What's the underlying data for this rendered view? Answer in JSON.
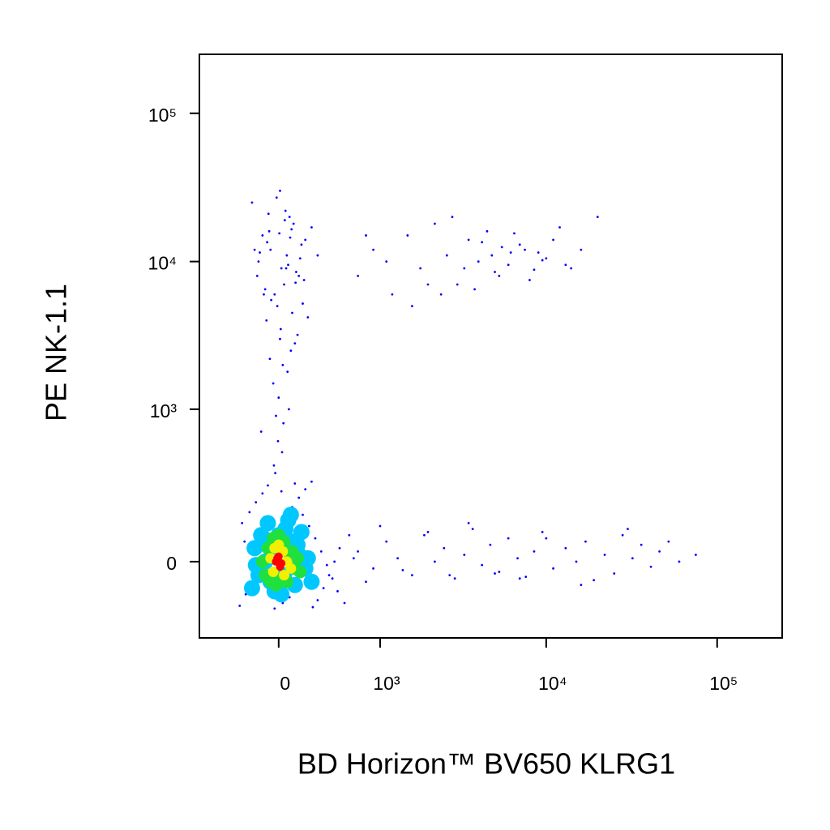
{
  "chart_data": {
    "type": "scatter",
    "xlabel": "BD Horizon™ BV650 KLRG1",
    "ylabel": "PE NK-1.1",
    "xscale": "biexponential",
    "yscale": "biexponential",
    "xlim": [
      -700,
      240000
    ],
    "ylim": [
      -280,
      250000
    ],
    "xticks": [
      0,
      {
        "value": 1000,
        "label": "10³"
      },
      {
        "value": 10000,
        "label": "10⁴"
      },
      {
        "value": 100000,
        "label": "10⁵"
      }
    ],
    "yticks": [
      0,
      {
        "value": 1000,
        "label": "10³"
      },
      {
        "value": 10000,
        "label": "10⁴"
      },
      {
        "value": 100000,
        "label": "10⁵"
      }
    ],
    "series": [
      {
        "color": "#0000ff",
        "x": [
          -120,
          -60,
          20,
          80,
          150,
          -200,
          -30,
          60,
          200,
          -90,
          10,
          110,
          -150,
          40,
          -10,
          90,
          170,
          -70,
          30,
          250,
          -40,
          70,
          -180,
          0,
          130,
          -100,
          50,
          -20,
          100,
          300,
          -130,
          15,
          85,
          -55,
          160,
          -5,
          45,
          120,
          -160,
          65,
          25,
          -85,
          190,
          -35,
          5,
          140,
          -110,
          75,
          -15,
          55,
          220,
          -65,
          35,
          -140,
          95,
          -25,
          180,
          -75,
          125,
          10,
          700,
          900,
          1200,
          1500,
          1800,
          2200,
          2600,
          3000,
          3500,
          4000,
          4500,
          5000,
          5500,
          6000,
          7000,
          8000,
          9000,
          10000,
          12000,
          14000,
          800,
          1100,
          1600,
          2000,
          2800,
          3300,
          3800,
          4200,
          4800,
          5300,
          6500,
          7500,
          8500,
          9500,
          11000,
          13000,
          16000,
          20000,
          2400,
          6200,
          700,
          900,
          1100,
          1300,
          1600,
          1900,
          2200,
          2500,
          2900,
          3300,
          3700,
          4200,
          4700,
          5300,
          6000,
          6800,
          7600,
          8500,
          9500,
          11000,
          13000,
          15000,
          17000,
          19000,
          22000,
          25000,
          28000,
          32000,
          36000,
          41000,
          46000,
          52000,
          60000,
          75000,
          800,
          1000,
          1400,
          2000,
          2700,
          3500,
          5000,
          7000,
          10000,
          16000,
          30000,
          -300,
          -250,
          -200,
          -150,
          -100,
          -50,
          0,
          50,
          100,
          150,
          200,
          250,
          300,
          350,
          400,
          450,
          500,
          600,
          -280,
          -220,
          -170,
          -120,
          -80,
          -30,
          30,
          80,
          130,
          180,
          230,
          280,
          330,
          380,
          430,
          480,
          550,
          650,
          -260,
          20,
          120,
          260
        ],
        "y": [
          15000,
          12000,
          9000,
          20000,
          8000,
          25000,
          6000,
          11000,
          14000,
          4000,
          3000,
          18000,
          10000,
          7000,
          5000,
          2500,
          13000,
          16000,
          2000,
          17000,
          1500,
          9500,
          12000,
          1200,
          8500,
          6500,
          22000,
          900,
          4500,
          11000,
          700,
          3500,
          14500,
          5500,
          10500,
          600,
          19000,
          2800,
          8000,
          1800,
          500,
          13500,
          7500,
          400,
          15500,
          3200,
          6000,
          1000,
          27000,
          9000,
          4200,
          2200,
          800,
          11500,
          16500,
          350,
          5200,
          21000,
          7200,
          30000,
          8000,
          12000,
          6000,
          15000,
          9000,
          18000,
          11000,
          7000,
          14000,
          10000,
          16000,
          8500,
          12500,
          9500,
          13000,
          7500,
          11500,
          10500,
          17000,
          9000,
          15000,
          10000,
          5000,
          7000,
          20000,
          9000,
          6500,
          13500,
          11000,
          8000,
          15500,
          12000,
          8800,
          10200,
          14000,
          9500,
          12000,
          20000,
          6000,
          11500,
          30,
          -20,
          60,
          10,
          -40,
          80,
          0,
          40,
          -50,
          20,
          100,
          -10,
          50,
          -30,
          70,
          10,
          -45,
          30,
          90,
          -20,
          40,
          0,
          60,
          -55,
          20,
          -35,
          80,
          10,
          50,
          -15,
          30,
          60,
          0,
          20,
          -60,
          110,
          -25,
          90,
          -40,
          120,
          -35,
          -50,
          70,
          -70,
          100,
          -140,
          -100,
          -60,
          -20,
          20,
          60,
          100,
          140,
          180,
          220,
          260,
          300,
          -120,
          -80,
          -40,
          0,
          40,
          80,
          120,
          160,
          200,
          240,
          280,
          -150,
          -130,
          -110,
          -90,
          150,
          110,
          70,
          30,
          -10,
          -50,
          -90,
          -130,
          10,
          60,
          250,
          290,
          -145
        ]
      },
      {
        "color": "#00c8ff",
        "x": [
          -200,
          -150,
          -100,
          -50,
          0,
          50,
          100,
          150,
          200,
          250,
          -180,
          -130,
          -80,
          -30,
          20,
          70,
          120,
          170,
          220,
          -170,
          -60,
          40,
          140,
          -110,
          90
        ],
        "y": [
          -80,
          -40,
          0,
          40,
          80,
          100,
          60,
          20,
          -20,
          -60,
          40,
          80,
          120,
          -90,
          -100,
          130,
          -70,
          90,
          10,
          -10,
          -60,
          -40,
          50,
          70,
          150
        ]
      },
      {
        "color": "#20e040",
        "x": [
          -120,
          -80,
          -40,
          0,
          40,
          80,
          120,
          160,
          -100,
          -60,
          -20,
          20,
          60,
          100,
          140
        ],
        "y": [
          0,
          40,
          70,
          80,
          60,
          20,
          -20,
          -30,
          -40,
          -60,
          -70,
          -50,
          -60,
          30,
          10
        ]
      },
      {
        "color": "#f0f000",
        "x": [
          -60,
          -30,
          0,
          30,
          60,
          90,
          -40,
          40
        ],
        "y": [
          10,
          40,
          50,
          30,
          0,
          -20,
          -30,
          -40
        ]
      },
      {
        "color": "#ff0000",
        "x": [
          -20,
          0,
          20,
          10,
          -10
        ],
        "y": [
          0,
          15,
          -5,
          -15,
          10
        ]
      }
    ]
  }
}
